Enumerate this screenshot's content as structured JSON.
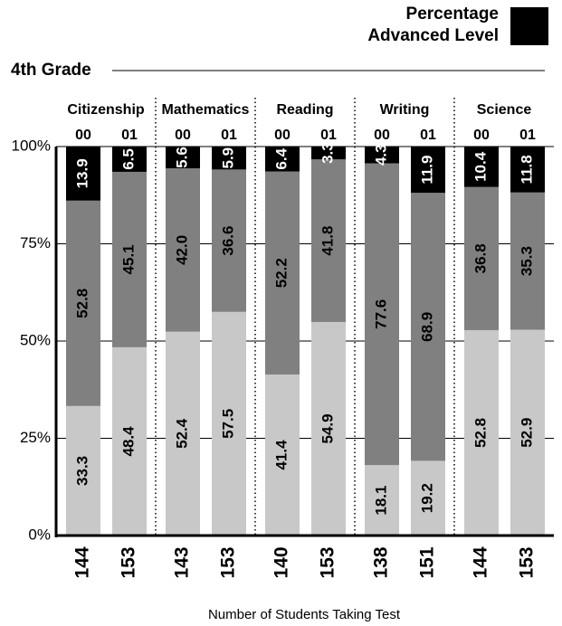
{
  "chart_data": {
    "type": "stacked_bar",
    "subtitle": "4th Grade",
    "x_label": "Number of Students Taking Test",
    "groups": [
      "Citizenship",
      "Mathematics",
      "Reading",
      "Writing",
      "Science"
    ],
    "categories": [
      "00",
      "01",
      "00",
      "01",
      "00",
      "01",
      "00",
      "01",
      "00",
      "01"
    ],
    "counts": [
      144,
      153,
      143,
      153,
      140,
      153,
      138,
      151,
      144,
      153
    ],
    "series": [
      {
        "color": "#c8c8c8",
        "label_color": "#000000",
        "values": [
          33.3,
          48.4,
          52.4,
          57.5,
          41.4,
          54.9,
          18.1,
          19.2,
          52.8,
          52.9
        ]
      },
      {
        "color": "#808080",
        "label_color": "#000000",
        "values": [
          52.8,
          45.1,
          42.0,
          36.6,
          52.2,
          41.8,
          77.6,
          68.9,
          36.8,
          35.3
        ],
        "value_labels": [
          "52.8",
          "45.1",
          "42.0",
          "36.6",
          "52.2",
          "41.8",
          "77.6",
          "68.9",
          "36.8",
          "35.3"
        ]
      },
      {
        "name": "Percentage Advanced Level",
        "color": "#000000",
        "label_color": "#ffffff",
        "values": [
          13.9,
          6.5,
          5.6,
          5.9,
          6.4,
          3.3,
          4.3,
          11.9,
          10.4,
          11.8
        ]
      }
    ],
    "ylim": [
      0,
      100
    ],
    "yticks": [
      {
        "value": 0,
        "label": "0%"
      },
      {
        "value": 25,
        "label": "25%"
      },
      {
        "value": 50,
        "label": "50%"
      },
      {
        "value": 75,
        "label": "75%"
      },
      {
        "value": 100,
        "label": "100%"
      }
    ],
    "grid": true,
    "legend": "top-right"
  }
}
